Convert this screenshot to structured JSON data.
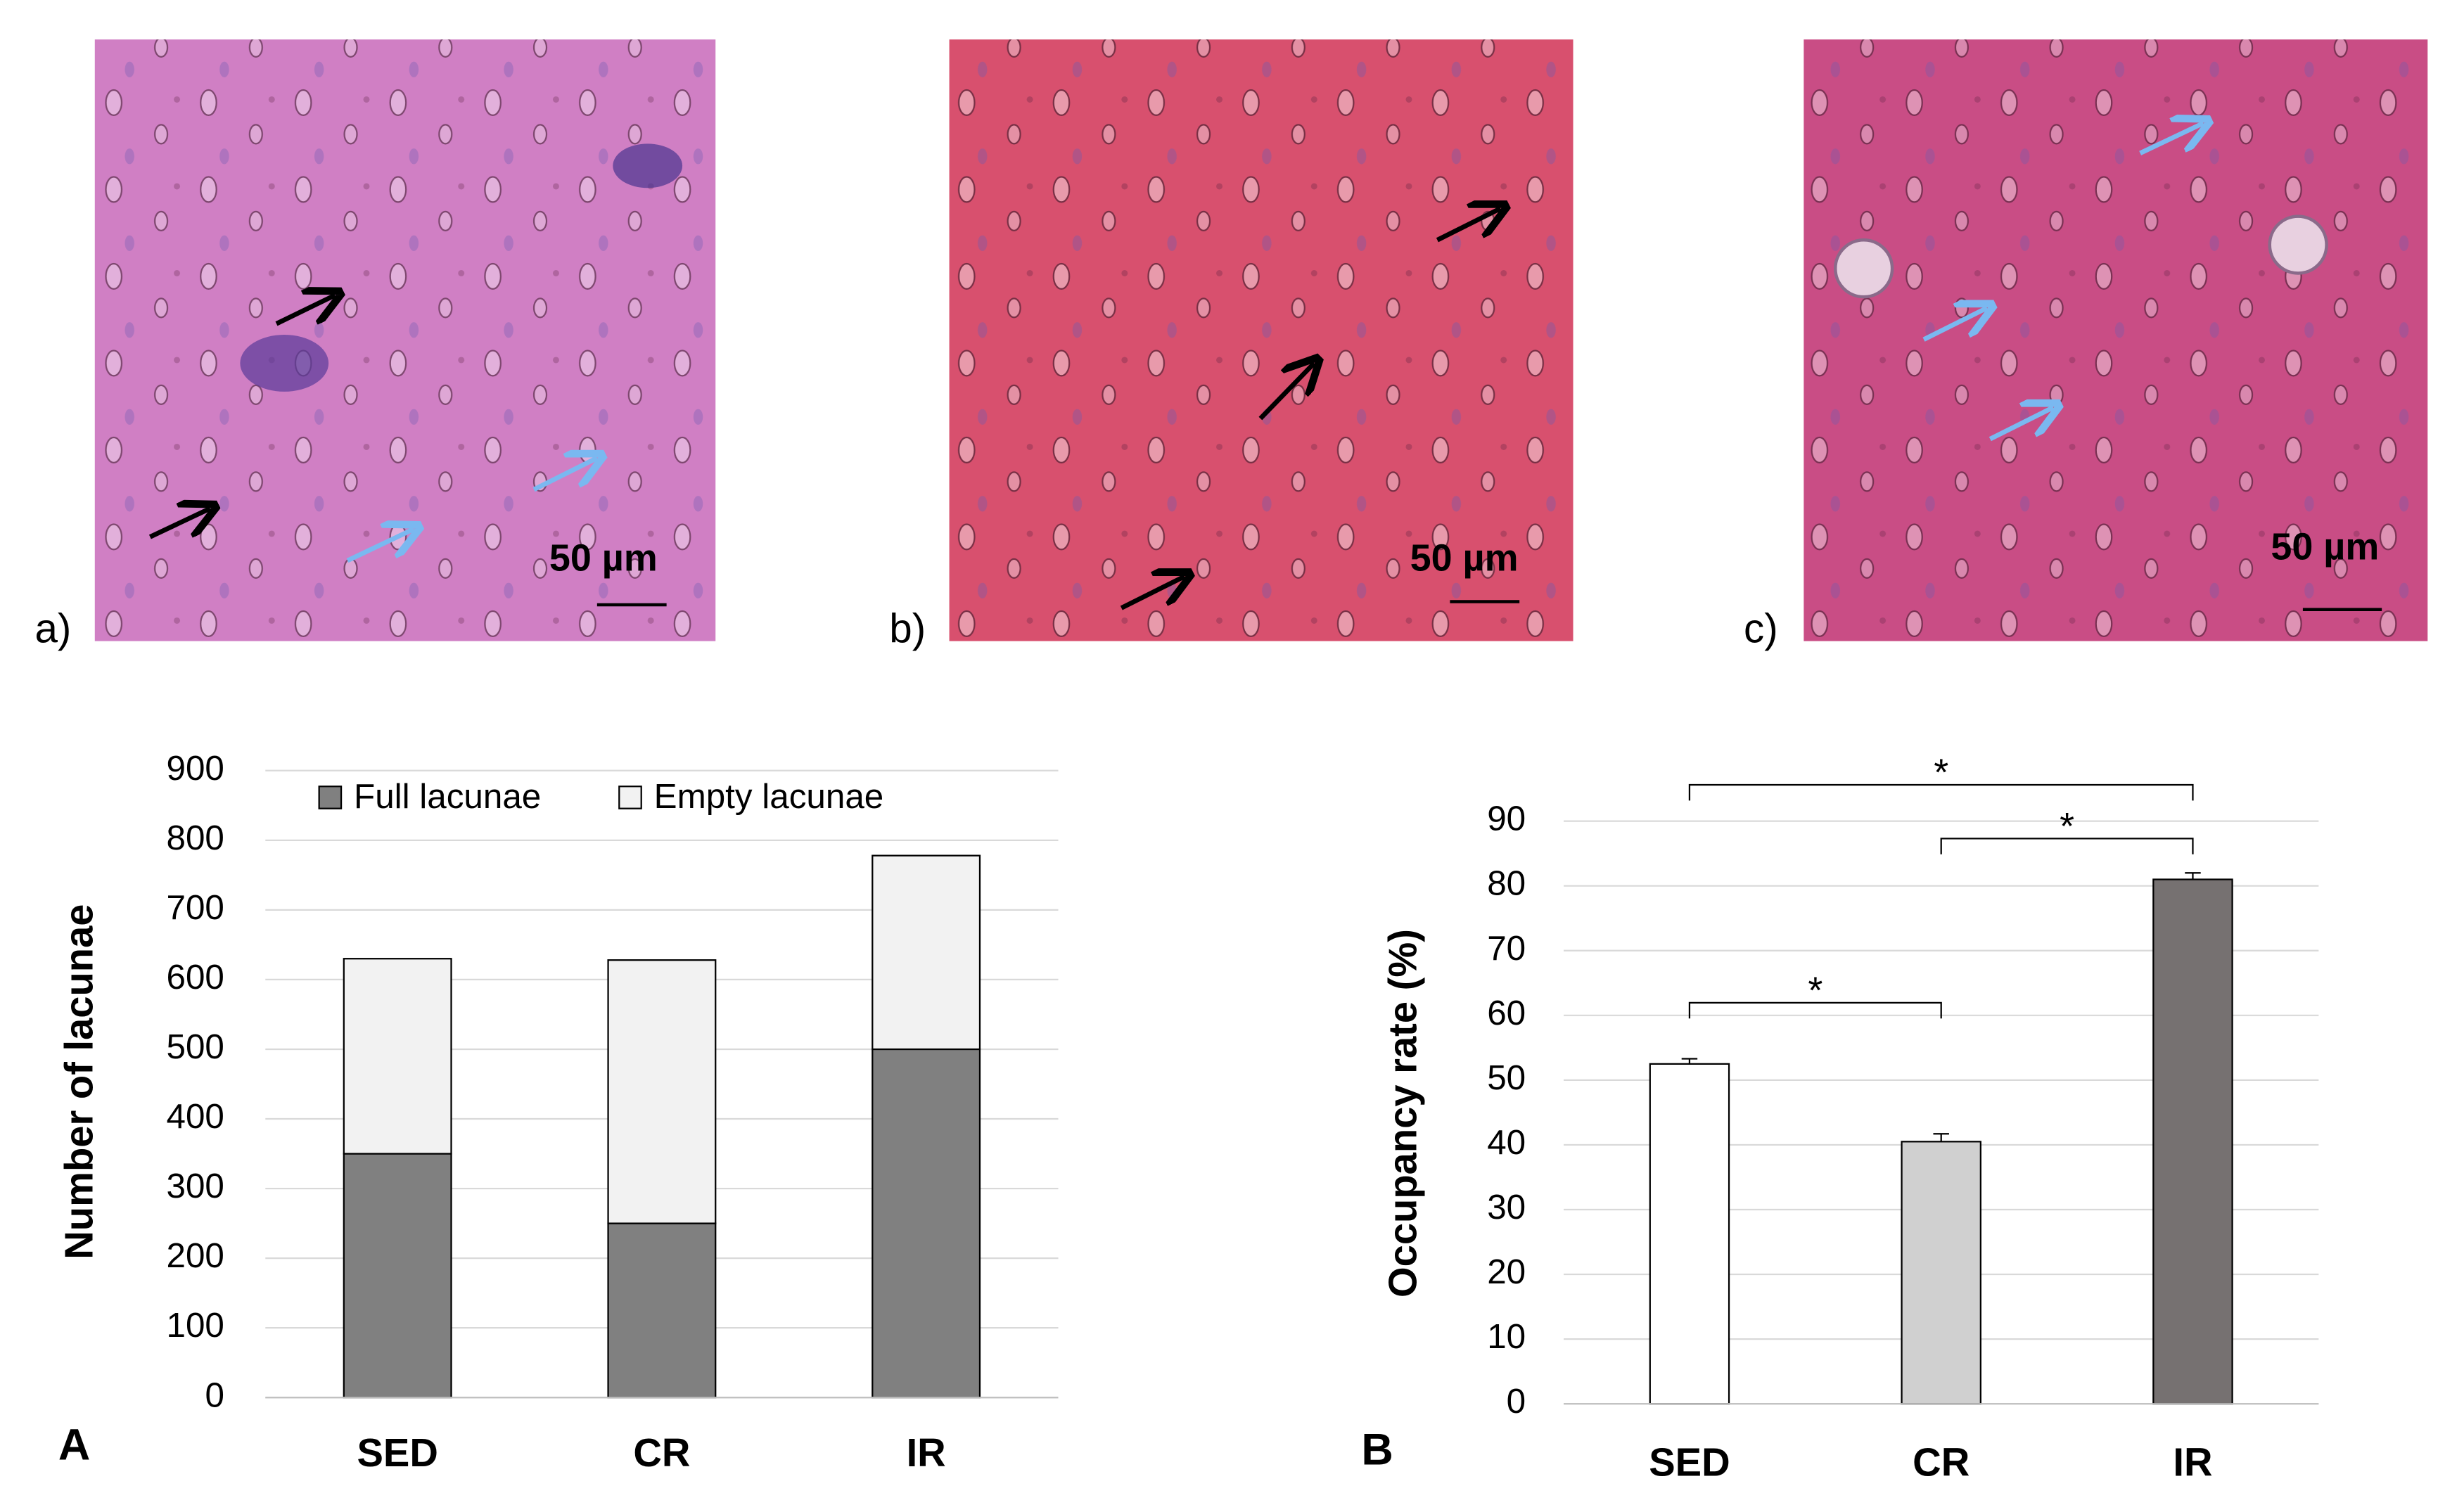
{
  "panels": [
    {
      "label": "a)",
      "scale_bar": "50 µm"
    },
    {
      "label": "b)",
      "scale_bar": "50 µm"
    },
    {
      "label": "c)",
      "scale_bar": "50 µm"
    }
  ],
  "chart_data": [
    {
      "type": "stacked_bar",
      "panel_label": "A",
      "y_label": "Number of lacunae",
      "categories": [
        "SED",
        "CR",
        "IR"
      ],
      "series": [
        {
          "name": "Full lacunae",
          "color": "#808080",
          "values": [
            350,
            250,
            500
          ]
        },
        {
          "name": "Empty lacunae",
          "color": "#f2f2f2",
          "values": [
            280,
            378,
            278
          ]
        }
      ],
      "ylim": [
        0,
        900
      ],
      "yticks": [
        0,
        100,
        200,
        300,
        400,
        500,
        600,
        700,
        800,
        900
      ],
      "grid": true,
      "legend": "top"
    },
    {
      "type": "bar",
      "panel_label": "B",
      "y_label": "Occupancy rate (%)",
      "categories": [
        "SED",
        "CR",
        "IR"
      ],
      "values": [
        52.5,
        40.5,
        81
      ],
      "errors": [
        0.8,
        1.2,
        1.0
      ],
      "colors": [
        "#ffffff",
        "#d0d0d0",
        "#767171"
      ],
      "ylim": [
        0,
        90
      ],
      "yticks": [
        0,
        10,
        20,
        30,
        40,
        50,
        60,
        70,
        80,
        90
      ],
      "grid": true,
      "annotations": [
        {
          "text": "*",
          "between": [
            0,
            2
          ]
        },
        {
          "text": "*",
          "between": [
            1,
            2
          ]
        },
        {
          "text": "*",
          "between": [
            0,
            1
          ]
        }
      ]
    }
  ]
}
